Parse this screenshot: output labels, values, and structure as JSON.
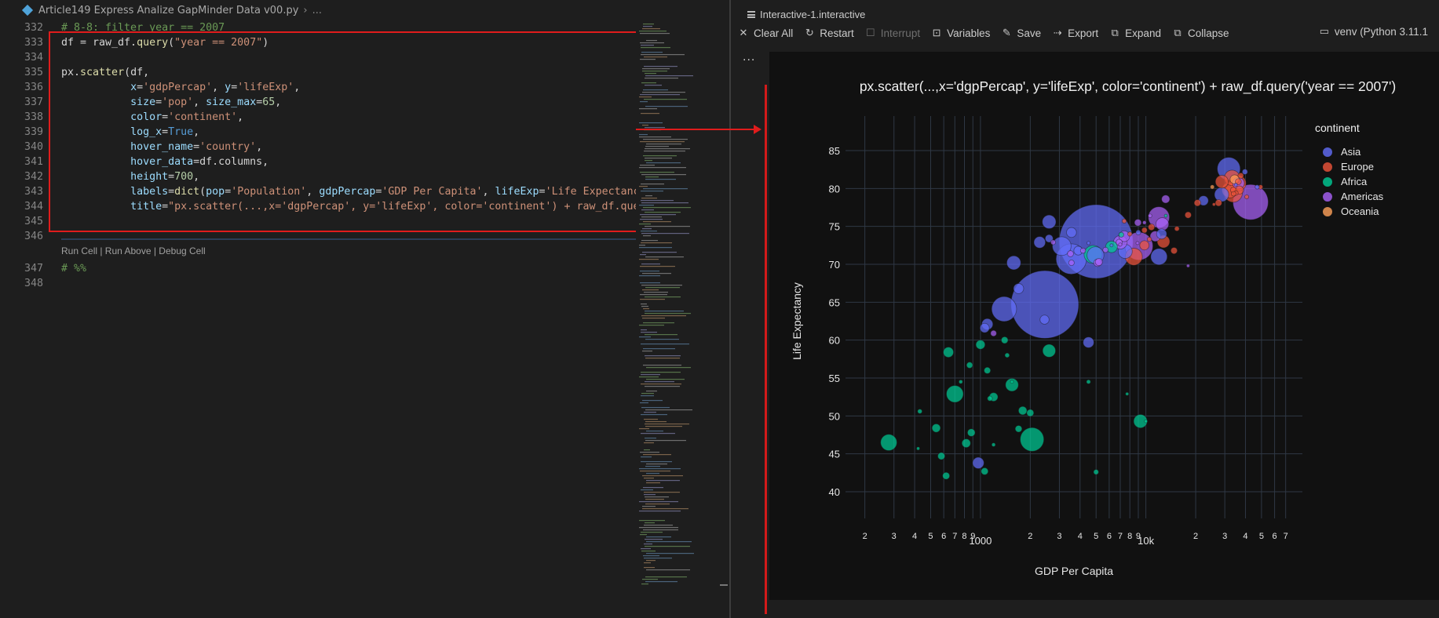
{
  "editor": {
    "breadcrumb": {
      "file": "Article149 Express Analize GapMinder Data v00.py",
      "rest": "..."
    },
    "lines": [
      {
        "num": "332",
        "segs": [
          [
            "c",
            "# 8-8: filter year == 2007"
          ]
        ]
      },
      {
        "num": "333",
        "segs": [
          [
            "t",
            "df = raw_df."
          ],
          [
            "f",
            "query"
          ],
          [
            "t",
            "("
          ],
          [
            "s",
            "\"year == 2007\""
          ],
          [
            "t",
            ")"
          ]
        ]
      },
      {
        "num": "334",
        "segs": []
      },
      {
        "num": "335",
        "segs": [
          [
            "t",
            "px."
          ],
          [
            "f",
            "scatter"
          ],
          [
            "t",
            "(df,"
          ]
        ]
      },
      {
        "num": "336",
        "segs": [
          [
            "t",
            "           "
          ],
          [
            "k",
            "x"
          ],
          [
            "t",
            "="
          ],
          [
            "s",
            "'gdpPercap'"
          ],
          [
            "t",
            ", "
          ],
          [
            "k",
            "y"
          ],
          [
            "t",
            "="
          ],
          [
            "s",
            "'lifeExp'"
          ],
          [
            "t",
            ","
          ]
        ]
      },
      {
        "num": "337",
        "segs": [
          [
            "t",
            "           "
          ],
          [
            "k",
            "size"
          ],
          [
            "t",
            "="
          ],
          [
            "s",
            "'pop'"
          ],
          [
            "t",
            ", "
          ],
          [
            "k",
            "size_max"
          ],
          [
            "t",
            "="
          ],
          [
            "n",
            "65"
          ],
          [
            "t",
            ","
          ]
        ]
      },
      {
        "num": "338",
        "segs": [
          [
            "t",
            "           "
          ],
          [
            "k",
            "color"
          ],
          [
            "t",
            "="
          ],
          [
            "s",
            "'continent'"
          ],
          [
            "t",
            ","
          ]
        ]
      },
      {
        "num": "339",
        "segs": [
          [
            "t",
            "           "
          ],
          [
            "k",
            "log_x"
          ],
          [
            "t",
            "="
          ],
          [
            "b",
            "True"
          ],
          [
            "t",
            ","
          ]
        ]
      },
      {
        "num": "340",
        "segs": [
          [
            "t",
            "           "
          ],
          [
            "k",
            "hover_name"
          ],
          [
            "t",
            "="
          ],
          [
            "s",
            "'country'"
          ],
          [
            "t",
            ","
          ]
        ]
      },
      {
        "num": "341",
        "segs": [
          [
            "t",
            "           "
          ],
          [
            "k",
            "hover_data"
          ],
          [
            "t",
            "=df.columns,"
          ]
        ]
      },
      {
        "num": "342",
        "segs": [
          [
            "t",
            "           "
          ],
          [
            "k",
            "height"
          ],
          [
            "t",
            "="
          ],
          [
            "n",
            "700"
          ],
          [
            "t",
            ","
          ]
        ]
      },
      {
        "num": "343",
        "segs": [
          [
            "t",
            "           "
          ],
          [
            "k",
            "labels"
          ],
          [
            "t",
            "="
          ],
          [
            "f",
            "dict"
          ],
          [
            "t",
            "("
          ],
          [
            "k",
            "pop"
          ],
          [
            "t",
            "="
          ],
          [
            "s",
            "'Population'"
          ],
          [
            "t",
            ", "
          ],
          [
            "k",
            "gdpPercap"
          ],
          [
            "t",
            "="
          ],
          [
            "s",
            "'GDP Per Capita'"
          ],
          [
            "t",
            ", "
          ],
          [
            "k",
            "lifeExp"
          ],
          [
            "t",
            "="
          ],
          [
            "s",
            "'Life Expectancy'"
          ],
          [
            "t",
            ")"
          ]
        ]
      },
      {
        "num": "344",
        "segs": [
          [
            "t",
            "           "
          ],
          [
            "k",
            "title"
          ],
          [
            "t",
            "="
          ],
          [
            "s",
            "\"px.scatter(...,x='dgpPercap', y='lifeExp', color='continent') + raw_df.query("
          ]
        ]
      },
      {
        "num": "345",
        "segs": []
      },
      {
        "num": "346",
        "segs": []
      },
      {
        "num": "347",
        "segs": [
          [
            "c",
            "# %%"
          ]
        ]
      },
      {
        "num": "348",
        "segs": []
      }
    ],
    "codelens": "Run Cell | Run Above | Debug Cell"
  },
  "interactive": {
    "tab_title": "Interactive-1.interactive",
    "toolbar": {
      "clear_all": "Clear All",
      "restart": "Restart",
      "interrupt": "Interrupt",
      "variables": "Variables",
      "save": "Save",
      "export": "Export",
      "expand": "Expand",
      "collapse": "Collapse",
      "kernel": "venv (Python 3.11.1"
    },
    "more": "..."
  },
  "colors": {
    "Asia": "#636efa",
    "Europe": "#ef553b",
    "Africa": "#00cc96",
    "Americas": "#ab63fa",
    "Oceania": "#ffa15a",
    "accent_red": "#e01c1c"
  },
  "chart_data": {
    "type": "scatter",
    "title": "px.scatter(...,x='dgpPercap', y='lifeExp', color='continent') + raw_df.query('year == 2007')",
    "xlabel": "GDP Per Capita",
    "ylabel": "Life Expectancy",
    "x_scale": "log",
    "xlim": [
      180,
      75000
    ],
    "ylim": [
      37,
      88
    ],
    "y_ticks": [
      40,
      45,
      50,
      55,
      60,
      65,
      70,
      75,
      80,
      85
    ],
    "x_ticks": [
      {
        "v": 200,
        "label": "2"
      },
      {
        "v": 300,
        "label": "3"
      },
      {
        "v": 400,
        "label": "4"
      },
      {
        "v": 500,
        "label": "5"
      },
      {
        "v": 600,
        "label": "6"
      },
      {
        "v": 700,
        "label": "7"
      },
      {
        "v": 800,
        "label": "8"
      },
      {
        "v": 900,
        "label": "9"
      },
      {
        "v": 1000,
        "label": "1000"
      },
      {
        "v": 2000,
        "label": "2"
      },
      {
        "v": 3000,
        "label": "3"
      },
      {
        "v": 4000,
        "label": "4"
      },
      {
        "v": 5000,
        "label": "5"
      },
      {
        "v": 6000,
        "label": "6"
      },
      {
        "v": 7000,
        "label": "7"
      },
      {
        "v": 8000,
        "label": "8"
      },
      {
        "v": 9000,
        "label": "9"
      },
      {
        "v": 10000,
        "label": "10k"
      },
      {
        "v": 20000,
        "label": "2"
      },
      {
        "v": 30000,
        "label": "3"
      },
      {
        "v": 40000,
        "label": "4"
      },
      {
        "v": 50000,
        "label": "5"
      },
      {
        "v": 60000,
        "label": "6"
      },
      {
        "v": 70000,
        "label": "7"
      }
    ],
    "grid": true,
    "legend_title": "continent",
    "legend_position": "top-right",
    "series": [
      {
        "name": "Asia",
        "points": [
          [
            5000,
            73.0,
            1318
          ],
          [
            2450,
            64.7,
            1110
          ],
          [
            3540,
            70.7,
            224
          ],
          [
            2600,
            75.6,
            45
          ],
          [
            1390,
            64.1,
            150
          ],
          [
            1100,
            62.1,
            30
          ],
          [
            1700,
            66.8,
            25
          ],
          [
            7500,
            71.7,
            48
          ],
          [
            12000,
            71.0,
            65
          ],
          [
            31700,
            82.6,
            127
          ],
          [
            39700,
            82.2,
            7
          ],
          [
            47100,
            80.2,
            4.5
          ],
          [
            28700,
            79.2,
            49
          ],
          [
            22300,
            78.4,
            23
          ],
          [
            35000,
            80.5,
            2
          ],
          [
            2440,
            62.7,
            20
          ],
          [
            970,
            43.8,
            31
          ],
          [
            1060,
            61.6,
            21
          ],
          [
            4500,
            59.7,
            28
          ],
          [
            3100,
            72.4,
            85
          ],
          [
            3550,
            74.2,
            24
          ],
          [
            1590,
            70.2,
            47
          ],
          [
            4960,
            71.2,
            69
          ],
          [
            4500,
            72.8,
            2.8
          ],
          [
            9000,
            74.2,
            6
          ],
          [
            12450,
            74.0,
            25
          ],
          [
            2280,
            72.9,
            32
          ],
          [
            2600,
            73.4,
            15
          ],
          [
            3900,
            71.8,
            19
          ],
          [
            6200,
            72.5,
            1.7
          ]
        ]
      },
      {
        "name": "Europe",
        "points": [
          [
            32170,
            79.8,
            60
          ],
          [
            36130,
            80.7,
            61
          ],
          [
            33200,
            81.4,
            58
          ],
          [
            28800,
            80.9,
            40
          ],
          [
            33700,
            79.4,
            82
          ],
          [
            12779,
            73.0,
            38
          ],
          [
            10800,
            74.9,
            10
          ],
          [
            18000,
            76.5,
            10
          ],
          [
            9800,
            72.5,
            21
          ],
          [
            20500,
            78.1,
            10.5
          ],
          [
            33800,
            79.8,
            8.2
          ],
          [
            35000,
            79.4,
            5.4
          ],
          [
            33900,
            79.3,
            5.2
          ],
          [
            36200,
            80.9,
            9
          ],
          [
            37500,
            81.7,
            7.6
          ],
          [
            40700,
            78.9,
            4.1
          ],
          [
            49400,
            80.2,
            4.6
          ],
          [
            36800,
            79.8,
            16.5
          ],
          [
            27500,
            78.1,
            10.6
          ],
          [
            8000,
            74.0,
            4.5
          ],
          [
            9800,
            74.5,
            7.3
          ],
          [
            7400,
            75.7,
            4.5
          ],
          [
            15400,
            74.7,
            5.4
          ],
          [
            25800,
            77.9,
            2
          ],
          [
            14800,
            71.8,
            10.2
          ],
          [
            10500,
            73.3,
            4.6
          ],
          [
            8450,
            71.0,
            71
          ]
        ]
      },
      {
        "name": "Africa",
        "points": [
          [
            6200,
            72.3,
            33
          ],
          [
            4800,
            71.3,
            80
          ],
          [
            2050,
            46.9,
            135
          ],
          [
            700,
            52.9,
            69
          ],
          [
            1550,
            54.1,
            40
          ],
          [
            1000,
            59.4,
            20
          ],
          [
            279,
            46.5,
            64
          ],
          [
            9270,
            49.3,
            44
          ],
          [
            1450,
            58.0,
            5
          ],
          [
            860,
            56.7,
            9
          ],
          [
            640,
            58.4,
            25
          ],
          [
            540,
            48.4,
            17
          ],
          [
            1200,
            52.5,
            18
          ],
          [
            880,
            47.8,
            14
          ],
          [
            1800,
            50.7,
            17
          ],
          [
            2600,
            58.6,
            40
          ],
          [
            1100,
            56.0,
            10
          ],
          [
            7100,
            73.9,
            6
          ],
          [
            13200,
            76.4,
            1.3
          ],
          [
            2000,
            50.4,
            12
          ],
          [
            1700,
            48.3,
            11
          ],
          [
            620,
            42.1,
            12
          ],
          [
            430,
            50.6,
            4.9
          ],
          [
            580,
            44.7,
            12.3
          ],
          [
            760,
            54.5,
            3.3
          ],
          [
            1550,
            54.5,
            2.1
          ],
          [
            820,
            46.4,
            18
          ],
          [
            1140,
            52.3,
            6
          ],
          [
            420,
            45.7,
            1.5
          ],
          [
            5000,
            42.6,
            6.2
          ],
          [
            4500,
            54.5,
            4
          ],
          [
            1400,
            60.0,
            11
          ],
          [
            7700,
            52.9,
            1.5
          ],
          [
            10000,
            49.3,
            0.6
          ],
          [
            1200,
            46.2,
            3.2
          ],
          [
            1060,
            42.7,
            12
          ]
        ]
      },
      {
        "name": "Americas",
        "points": [
          [
            42950,
            78.2,
            301
          ],
          [
            9070,
            72.4,
            190
          ],
          [
            11980,
            76.2,
            108
          ],
          [
            36300,
            80.7,
            33
          ],
          [
            12570,
            75.3,
            40
          ],
          [
            7000,
            72.9,
            44
          ],
          [
            7400,
            73.7,
            28
          ],
          [
            13170,
            78.6,
            16
          ],
          [
            8950,
            75.5,
            11.4
          ],
          [
            3500,
            71.4,
            9.1
          ],
          [
            5100,
            70.2,
            13.8
          ],
          [
            6900,
            72.9,
            9.3
          ],
          [
            5700,
            71.9,
            6.9
          ],
          [
            5200,
            70.3,
            12.6
          ],
          [
            1200,
            60.9,
            8.5
          ],
          [
            3550,
            70.2,
            7.5
          ],
          [
            2750,
            72.9,
            5.7
          ],
          [
            9800,
            75.5,
            3.2
          ],
          [
            4170,
            71.8,
            6.6
          ],
          [
            10600,
            76.4,
            3.4
          ],
          [
            11400,
            73.7,
            26
          ],
          [
            7000,
            72.6,
            2.8
          ],
          [
            18000,
            69.8,
            1.1
          ],
          [
            8900,
            72.8,
            1
          ]
        ]
      },
      {
        "name": "Oceania",
        "points": [
          [
            34400,
            81.2,
            20
          ],
          [
            25200,
            80.2,
            4.1
          ]
        ]
      }
    ]
  }
}
